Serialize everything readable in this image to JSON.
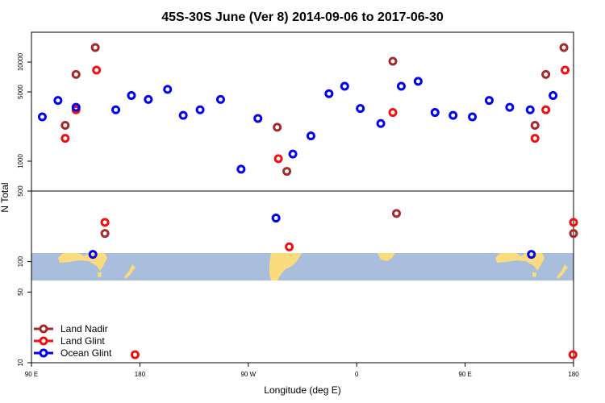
{
  "chart_data": {
    "type": "scatter",
    "title": "45S-30S June (Ver 8)   2014-09-06 to 2017-06-30",
    "xlabel": "Longitude (deg E)",
    "ylabel": "N Total",
    "x_ticks": [
      {
        "value": 90,
        "label": "90 E"
      },
      {
        "value": 180,
        "label": "180"
      },
      {
        "value": 270,
        "label": "90 W"
      },
      {
        "value": 360,
        "label": "0"
      },
      {
        "value": 450,
        "label": "90 E"
      },
      {
        "value": 540,
        "label": "180"
      }
    ],
    "xlim": [
      90,
      540
    ],
    "upper_panel": {
      "scale": "log",
      "ylim": [
        500,
        20000
      ],
      "y_ticks": [
        {
          "value": 1000,
          "label": "1000"
        },
        {
          "value": 5000,
          "label": "5000"
        },
        {
          "value": 10000,
          "label": "10000"
        }
      ]
    },
    "lower_panel": {
      "scale": "log",
      "ylim": [
        10,
        500
      ],
      "y_ticks": [
        {
          "value": 10,
          "label": "10"
        },
        {
          "value": 50,
          "label": "50"
        },
        {
          "value": 100,
          "label": "100"
        },
        {
          "value": 500,
          "label": "500"
        }
      ]
    },
    "legend_position": "bottom-left",
    "series": [
      {
        "name": "Land Nadir",
        "color": "#a52a2a",
        "points": [
          {
            "x": 118,
            "y": 2300
          },
          {
            "x": 127,
            "y": 7500
          },
          {
            "x": 143,
            "y": 14000
          },
          {
            "x": 151,
            "y": 190
          },
          {
            "x": 294,
            "y": 2200
          },
          {
            "x": 302,
            "y": 790
          },
          {
            "x": 390,
            "y": 10200
          },
          {
            "x": 393,
            "y": 300
          },
          {
            "x": 508,
            "y": 2300
          },
          {
            "x": 517,
            "y": 7500
          },
          {
            "x": 532,
            "y": 14000
          },
          {
            "x": 540,
            "y": 190
          }
        ]
      },
      {
        "name": "Land Glint",
        "color": "#ee1111",
        "points": [
          {
            "x": 118,
            "y": 1700
          },
          {
            "x": 127,
            "y": 3300
          },
          {
            "x": 144,
            "y": 8300
          },
          {
            "x": 151,
            "y": 245
          },
          {
            "x": 176,
            "y": 12
          },
          {
            "x": 295,
            "y": 1060
          },
          {
            "x": 304,
            "y": 140
          },
          {
            "x": 390,
            "y": 3100
          },
          {
            "x": 508,
            "y": 1700
          },
          {
            "x": 517,
            "y": 3300
          },
          {
            "x": 533,
            "y": 8300
          },
          {
            "x": 540,
            "y": 245
          },
          {
            "x": 566,
            "y": 12
          }
        ]
      },
      {
        "name": "Ocean Glint",
        "color": "#0000ee",
        "points": [
          {
            "x": 99,
            "y": 2800
          },
          {
            "x": 112,
            "y": 4100
          },
          {
            "x": 127,
            "y": 3500
          },
          {
            "x": 141,
            "y": 118
          },
          {
            "x": 160,
            "y": 3300
          },
          {
            "x": 173,
            "y": 4600
          },
          {
            "x": 187,
            "y": 4200
          },
          {
            "x": 203,
            "y": 5300
          },
          {
            "x": 216,
            "y": 2900
          },
          {
            "x": 230,
            "y": 3300
          },
          {
            "x": 247,
            "y": 4200
          },
          {
            "x": 264,
            "y": 830
          },
          {
            "x": 278,
            "y": 2700
          },
          {
            "x": 293,
            "y": 270
          },
          {
            "x": 307,
            "y": 1180
          },
          {
            "x": 322,
            "y": 1800
          },
          {
            "x": 337,
            "y": 4800
          },
          {
            "x": 350,
            "y": 5700
          },
          {
            "x": 363,
            "y": 3400
          },
          {
            "x": 380,
            "y": 2400
          },
          {
            "x": 397,
            "y": 5700
          },
          {
            "x": 411,
            "y": 6400
          },
          {
            "x": 425,
            "y": 3100
          },
          {
            "x": 440,
            "y": 2900
          },
          {
            "x": 456,
            "y": 2800
          },
          {
            "x": 470,
            "y": 4100
          },
          {
            "x": 487,
            "y": 3500
          },
          {
            "x": 505,
            "y": 118
          },
          {
            "x": 504,
            "y": 3300
          },
          {
            "x": 523,
            "y": 4600
          }
        ]
      }
    ]
  }
}
